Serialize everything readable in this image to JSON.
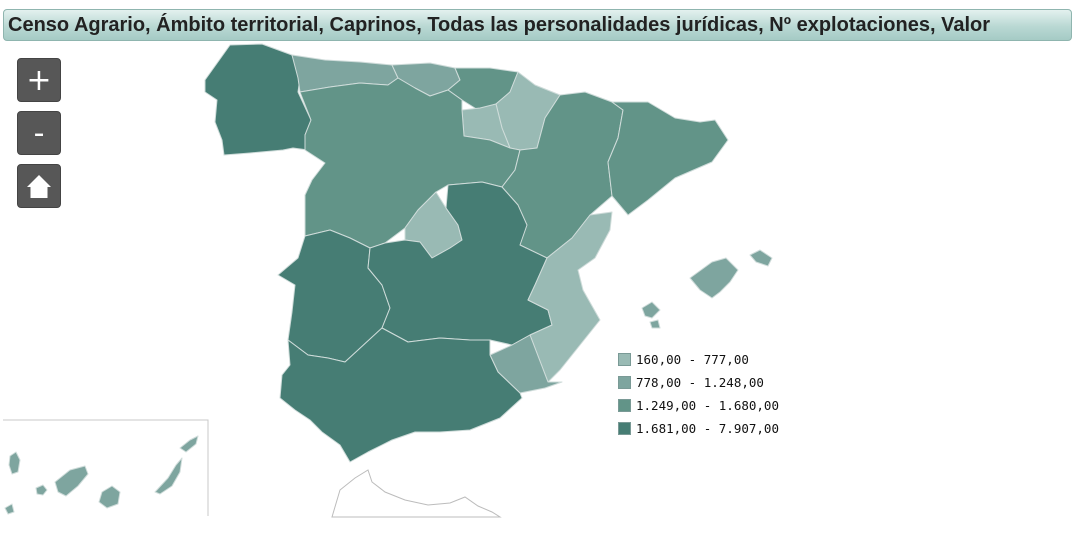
{
  "title": "Censo Agrario, Ámbito territorial, Caprinos, Todas las personalidades jurídicas, Nº explotaciones, Valor",
  "controls": {
    "zoom_in_label": "+",
    "zoom_out_label": "-",
    "home_icon": "home-icon"
  },
  "classes": {
    "c1": "#99bab4",
    "c2": "#7ea59f",
    "c3": "#629488",
    "c4": "#467d74",
    "outline": "#ffffff"
  },
  "legend": {
    "items": [
      {
        "label": "160,00 - 777,00",
        "color": "#99bab4"
      },
      {
        "label": "778,00 - 1.248,00",
        "color": "#7ea59f"
      },
      {
        "label": "1.249,00 - 1.680,00",
        "color": "#629488"
      },
      {
        "label": "1.681,00 - 7.907,00",
        "color": "#467d74"
      }
    ]
  }
}
